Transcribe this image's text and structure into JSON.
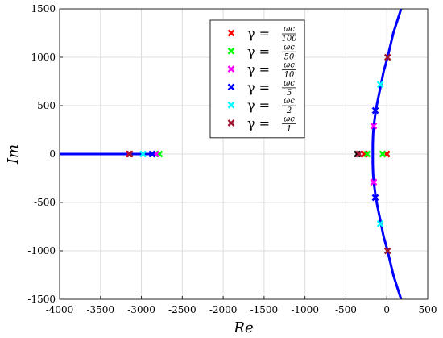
{
  "chart_data": {
    "type": "scatter",
    "xlabel": "Re",
    "ylabel": "Im",
    "xlim": [
      -4000,
      500
    ],
    "ylim": [
      -1500,
      1500
    ],
    "xticks": [
      -4000,
      -3500,
      -3000,
      -2500,
      -2000,
      -1500,
      -1000,
      -500,
      0,
      500
    ],
    "yticks": [
      -1500,
      -1000,
      -500,
      0,
      500,
      1000,
      1500
    ],
    "grid": true,
    "legend_position": "top-center",
    "locus_color": "#0000ff",
    "locus": [
      {
        "name": "",
        "points": [
          [
            -4000,
            0
          ],
          [
            -2780,
            0
          ]
        ]
      },
      {
        "name": "",
        "points": [
          [
            175,
            1500
          ],
          [
            80,
            1250
          ],
          [
            10,
            1000
          ],
          [
            -40,
            850
          ],
          [
            -70,
            720
          ],
          [
            -110,
            560
          ],
          [
            -135,
            450
          ],
          [
            -150,
            350
          ],
          [
            -160,
            290
          ],
          [
            -168,
            200
          ],
          [
            -172,
            100
          ],
          [
            -172,
            0
          ],
          [
            -172,
            -100
          ],
          [
            -168,
            -200
          ],
          [
            -160,
            -290
          ],
          [
            -150,
            -350
          ],
          [
            -135,
            -450
          ],
          [
            -110,
            -560
          ],
          [
            -70,
            -720
          ],
          [
            -40,
            -850
          ],
          [
            10,
            -1000
          ],
          [
            80,
            -1250
          ],
          [
            175,
            -1500
          ]
        ]
      }
    ],
    "series": [
      {
        "name": "γ = ωc/100",
        "frac_num": "ωc",
        "frac_den": "100",
        "color": "#ff0000",
        "points": [
          [
            -3150,
            0
          ],
          [
            -270,
            0
          ],
          [
            0,
            0
          ]
        ]
      },
      {
        "name": "γ = ωc/50",
        "frac_num": "ωc",
        "frac_den": "50",
        "color": "#00ff00",
        "points": [
          [
            -2780,
            0
          ],
          [
            -240,
            0
          ],
          [
            -50,
            0
          ]
        ]
      },
      {
        "name": "γ = ωc/10",
        "frac_num": "ωc",
        "frac_den": "10",
        "color": "#ff00ff",
        "points": [
          [
            -2820,
            0
          ],
          [
            -160,
            290
          ],
          [
            -160,
            -290
          ]
        ]
      },
      {
        "name": "γ = ωc/5",
        "frac_num": "ωc",
        "frac_den": "5",
        "color": "#0000ff",
        "points": [
          [
            -2870,
            0
          ],
          [
            -140,
            450
          ],
          [
            -140,
            -450
          ]
        ]
      },
      {
        "name": "γ = ωc/2",
        "frac_num": "ωc",
        "frac_den": "2",
        "color": "#00ffff",
        "points": [
          [
            -2980,
            0
          ],
          [
            -80,
            720
          ],
          [
            -80,
            -720
          ]
        ]
      },
      {
        "name": "γ = ωc/1",
        "frac_num": "ωc",
        "frac_den": "1",
        "color": "#a2142f",
        "points": [
          [
            -3140,
            0
          ],
          [
            -340,
            0
          ],
          [
            10,
            1000
          ],
          [
            10,
            -1000
          ]
        ]
      }
    ],
    "extra_markers": [
      {
        "color": "#000000",
        "points": [
          [
            -360,
            0
          ],
          [
            0,
            0
          ]
        ]
      }
    ],
    "legend_prefix": "γ ="
  }
}
